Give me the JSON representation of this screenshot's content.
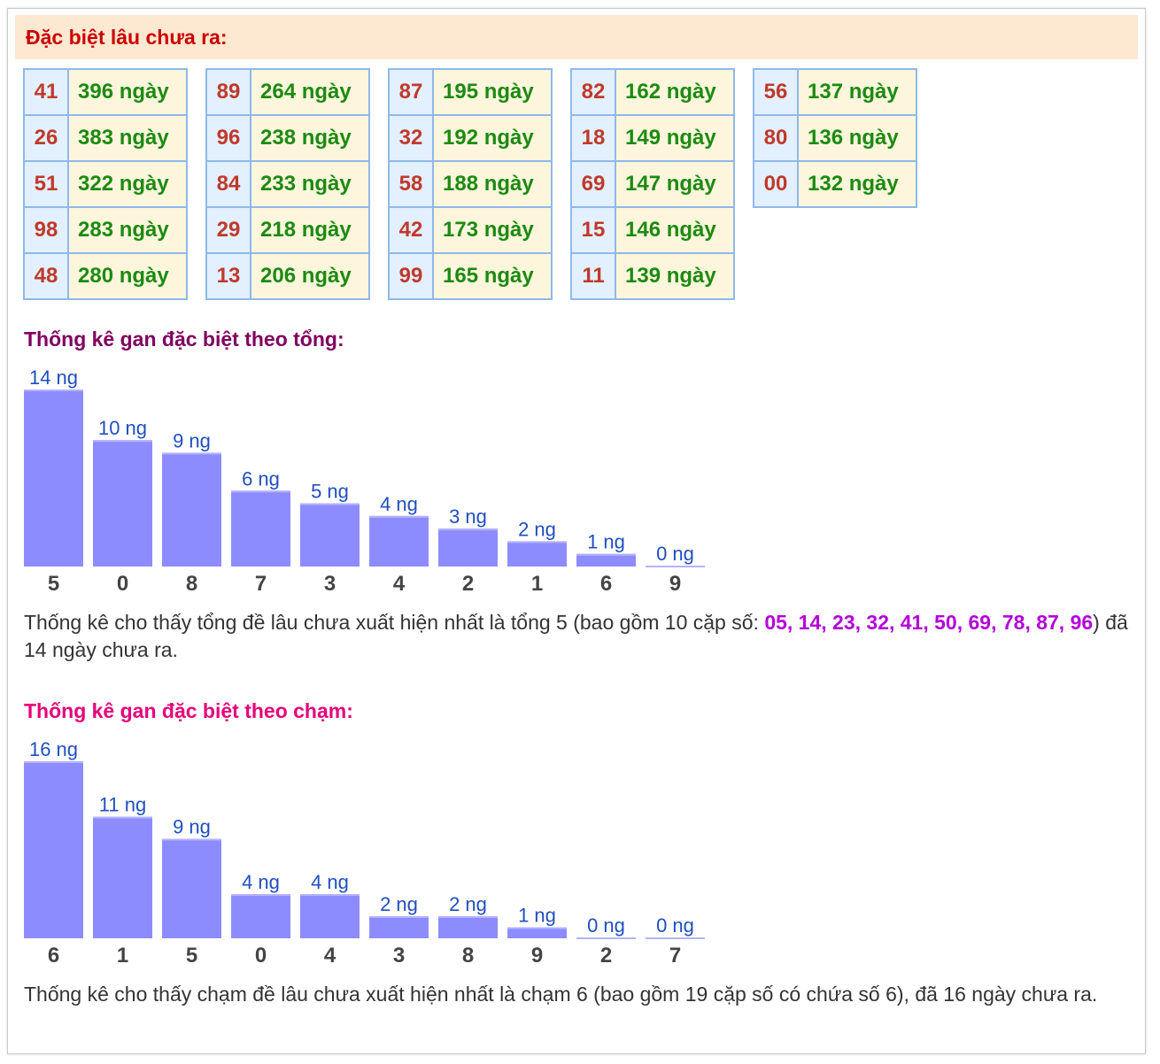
{
  "header": {
    "title": "Đặc biệt lâu chưa ra:"
  },
  "gan_tables": [
    {
      "rows": [
        {
          "num": "41",
          "days": "396 ngày"
        },
        {
          "num": "26",
          "days": "383 ngày"
        },
        {
          "num": "51",
          "days": "322 ngày"
        },
        {
          "num": "98",
          "days": "283 ngày"
        },
        {
          "num": "48",
          "days": "280 ngày"
        }
      ]
    },
    {
      "rows": [
        {
          "num": "89",
          "days": "264 ngày"
        },
        {
          "num": "96",
          "days": "238 ngày"
        },
        {
          "num": "84",
          "days": "233 ngày"
        },
        {
          "num": "29",
          "days": "218 ngày"
        },
        {
          "num": "13",
          "days": "206 ngày"
        }
      ]
    },
    {
      "rows": [
        {
          "num": "87",
          "days": "195 ngày"
        },
        {
          "num": "32",
          "days": "192 ngày"
        },
        {
          "num": "58",
          "days": "188 ngày"
        },
        {
          "num": "42",
          "days": "173 ngày"
        },
        {
          "num": "99",
          "days": "165 ngày"
        }
      ]
    },
    {
      "rows": [
        {
          "num": "82",
          "days": "162 ngày"
        },
        {
          "num": "18",
          "days": "149 ngày"
        },
        {
          "num": "69",
          "days": "147 ngày"
        },
        {
          "num": "15",
          "days": "146 ngày"
        },
        {
          "num": "11",
          "days": "139 ngày"
        }
      ]
    },
    {
      "rows": [
        {
          "num": "56",
          "days": "137 ngày"
        },
        {
          "num": "80",
          "days": "136 ngày"
        },
        {
          "num": "00",
          "days": "132 ngày"
        }
      ]
    }
  ],
  "tong_section": {
    "title": "Thống kê gan đặc biệt theo tổng:",
    "summary_before": "Thống kê cho thấy tổng đề lâu chưa xuất hiện nhất là tổng 5 (bao gồm 10 cặp số: ",
    "summary_pairs": "05, 14, 23, 32, 41, 50, 69, 78, 87, 96",
    "summary_after": ") đã 14 ngày chưa ra."
  },
  "cham_section": {
    "title": "Thống kê gan đặc biệt theo chạm:",
    "summary": "Thống kê cho thấy chạm đề lâu chưa xuất hiện nhất là chạm 6 (bao gồm 19 cặp số có chứa số 6), đã 16 ngày chưa ra."
  },
  "chart_data": [
    {
      "type": "bar",
      "categories": [
        "5",
        "0",
        "8",
        "7",
        "3",
        "4",
        "2",
        "1",
        "6",
        "9"
      ],
      "values": [
        14,
        10,
        9,
        6,
        5,
        4,
        3,
        2,
        1,
        0
      ],
      "value_suffix": " ng",
      "title": "",
      "xlabel": "",
      "ylabel": "",
      "ylim": [
        0,
        14
      ],
      "grid": false,
      "colors": {
        "bar": "#8d8cff",
        "label": "#1f4fbf"
      }
    },
    {
      "type": "bar",
      "categories": [
        "6",
        "1",
        "5",
        "0",
        "4",
        "3",
        "8",
        "9",
        "2",
        "7"
      ],
      "values": [
        16,
        11,
        9,
        4,
        4,
        2,
        2,
        1,
        0,
        0
      ],
      "value_suffix": " ng",
      "title": "",
      "xlabel": "",
      "ylabel": "",
      "ylim": [
        0,
        16
      ],
      "grid": false,
      "colors": {
        "bar": "#8d8cff",
        "label": "#1f4fbf"
      }
    }
  ]
}
